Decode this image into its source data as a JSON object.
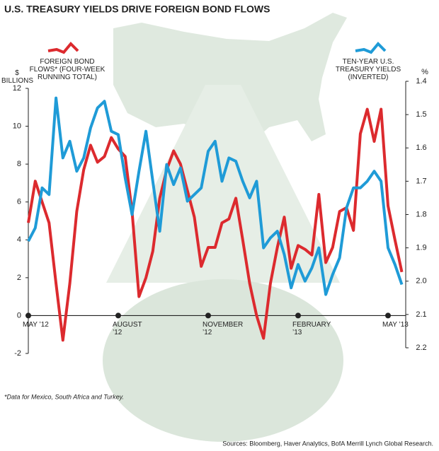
{
  "chart_data": {
    "type": "line",
    "title": "U.S. TREASURY YIELDS DRIVE FOREIGN BOND FLOWS",
    "y_label": "$ BILLIONS",
    "y2_label": "%",
    "footnote": "*Data for Mexico, South Africa and Turkey.",
    "source": "Sources: Bloomberg, Haver Analytics, BofA Merrill Lynch Global Research.",
    "categories": [
      "MAY ’12",
      null,
      null,
      null,
      null,
      null,
      null,
      null,
      null,
      null,
      null,
      null,
      null,
      "AUGUST ’12",
      null,
      null,
      null,
      null,
      null,
      null,
      null,
      null,
      null,
      null,
      null,
      null,
      "NOVEMBER ’12",
      null,
      null,
      null,
      null,
      null,
      null,
      null,
      null,
      null,
      null,
      null,
      null,
      "FEBRUARY ’13",
      null,
      null,
      null,
      null,
      null,
      null,
      null,
      null,
      null,
      null,
      null,
      null,
      "MAY ’13",
      null,
      null
    ],
    "ylim": [
      -2,
      12
    ],
    "yticks": [
      -2,
      0,
      2,
      4,
      6,
      8,
      10,
      12
    ],
    "y2lim": [
      1.4,
      2.2
    ],
    "y2_inverted": true,
    "y2ticks": [
      1.4,
      1.5,
      1.6,
      1.7,
      1.8,
      1.9,
      {
        "value": 2,
        "label": "2.0"
      },
      2.1,
      2.2
    ],
    "series": [
      {
        "name": "FOREIGN BOND FLOWS* (FOUR-WEEK RUNNING TOTAL)",
        "color": "#dc2a2e",
        "values": [
          4.9,
          7.1,
          6.0,
          4.9,
          1.7,
          -1.3,
          1.7,
          5.5,
          7.7,
          9.0,
          8.1,
          8.4,
          9.4,
          8.8,
          8.4,
          5.5,
          1.0,
          2.0,
          3.4,
          6.2,
          7.7,
          8.7,
          8.0,
          6.6,
          5.2,
          2.6,
          3.6,
          3.6,
          4.9,
          5.1,
          6.2,
          4.0,
          1.7,
          0,
          -1.2,
          1.7,
          3.6,
          5.2,
          2.5,
          3.7,
          3.5,
          3.2,
          6.4,
          2.8,
          3.6,
          5.5,
          5.7,
          4.5,
          9.6,
          10.9,
          9.2,
          10.9,
          5.8,
          4.0,
          2.3
        ]
      },
      {
        "name": "TEN-YEAR U.S. TREASURY YIELDS (INVERTED)",
        "color": "#1f9bd7",
        "axis": "y2",
        "values": [
          1.88,
          1.84,
          1.72,
          1.74,
          1.45,
          1.63,
          1.58,
          1.67,
          1.63,
          1.54,
          1.48,
          1.46,
          1.55,
          1.56,
          1.69,
          1.8,
          1.67,
          1.55,
          1.7,
          1.85,
          1.65,
          1.71,
          1.66,
          1.76,
          1.74,
          1.72,
          1.61,
          1.58,
          1.7,
          1.63,
          1.64,
          1.7,
          1.75,
          1.7,
          1.9,
          1.87,
          1.85,
          1.92,
          2.02,
          1.95,
          2.0,
          1.96,
          1.9,
          2.04,
          1.98,
          1.93,
          1.78,
          1.72,
          1.72,
          1.7,
          1.67,
          1.7,
          1.9,
          1.95,
          2.01
        ]
      }
    ]
  }
}
